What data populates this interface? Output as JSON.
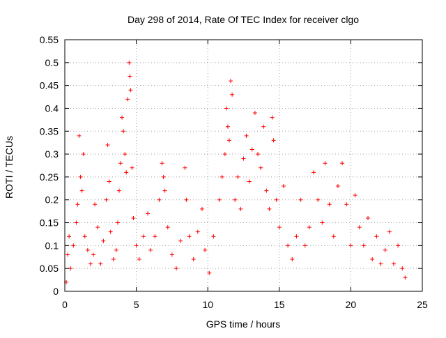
{
  "chart_data": {
    "type": "scatter",
    "title": "Day 298 of 2014, Rate Of TEC Index for receiver clgo",
    "xlabel": "GPS time / hours",
    "ylabel": "ROTI / TECUs",
    "xlim": [
      0,
      25
    ],
    "ylim": [
      0,
      0.55
    ],
    "xticks": [
      0,
      5,
      10,
      15,
      20,
      25
    ],
    "yticks": [
      0,
      0.05,
      0.1,
      0.15,
      0.2,
      0.25,
      0.3,
      0.35,
      0.4,
      0.45,
      0.5,
      0.55
    ],
    "grid": true,
    "marker": "plus",
    "color": "#ff0000",
    "series": [
      {
        "points": [
          [
            0.1,
            0.02
          ],
          [
            0.2,
            0.08
          ],
          [
            0.3,
            0.12
          ],
          [
            0.4,
            0.05
          ],
          [
            0.6,
            0.1
          ],
          [
            0.8,
            0.15
          ],
          [
            0.9,
            0.19
          ],
          [
            1.0,
            0.34
          ],
          [
            1.1,
            0.25
          ],
          [
            1.2,
            0.22
          ],
          [
            1.3,
            0.3
          ],
          [
            1.4,
            0.12
          ],
          [
            1.6,
            0.09
          ],
          [
            1.8,
            0.06
          ],
          [
            2.0,
            0.08
          ],
          [
            2.1,
            0.19
          ],
          [
            2.3,
            0.14
          ],
          [
            2.5,
            0.06
          ],
          [
            2.7,
            0.11
          ],
          [
            2.9,
            0.2
          ],
          [
            3.0,
            0.32
          ],
          [
            3.1,
            0.24
          ],
          [
            3.2,
            0.13
          ],
          [
            3.4,
            0.07
          ],
          [
            3.6,
            0.09
          ],
          [
            3.7,
            0.15
          ],
          [
            3.8,
            0.22
          ],
          [
            3.9,
            0.28
          ],
          [
            4.0,
            0.38
          ],
          [
            4.1,
            0.35
          ],
          [
            4.2,
            0.3
          ],
          [
            4.3,
            0.26
          ],
          [
            4.4,
            0.42
          ],
          [
            4.5,
            0.5
          ],
          [
            4.55,
            0.47
          ],
          [
            4.6,
            0.44
          ],
          [
            4.7,
            0.27
          ],
          [
            4.8,
            0.16
          ],
          [
            5.0,
            0.1
          ],
          [
            5.2,
            0.07
          ],
          [
            5.5,
            0.12
          ],
          [
            5.8,
            0.17
          ],
          [
            6.0,
            0.09
          ],
          [
            6.3,
            0.12
          ],
          [
            6.6,
            0.2
          ],
          [
            6.8,
            0.28
          ],
          [
            6.9,
            0.25
          ],
          [
            7.0,
            0.22
          ],
          [
            7.2,
            0.14
          ],
          [
            7.5,
            0.08
          ],
          [
            7.8,
            0.05
          ],
          [
            8.1,
            0.11
          ],
          [
            8.4,
            0.27
          ],
          [
            8.5,
            0.2
          ],
          [
            8.7,
            0.12
          ],
          [
            9.0,
            0.07
          ],
          [
            9.3,
            0.13
          ],
          [
            9.6,
            0.18
          ],
          [
            9.8,
            0.09
          ],
          [
            10.1,
            0.04
          ],
          [
            10.4,
            0.12
          ],
          [
            10.8,
            0.2
          ],
          [
            11.0,
            0.25
          ],
          [
            11.2,
            0.3
          ],
          [
            11.3,
            0.4
          ],
          [
            11.4,
            0.36
          ],
          [
            11.5,
            0.33
          ],
          [
            11.6,
            0.46
          ],
          [
            11.7,
            0.43
          ],
          [
            11.9,
            0.2
          ],
          [
            12.1,
            0.25
          ],
          [
            12.3,
            0.18
          ],
          [
            12.5,
            0.29
          ],
          [
            12.7,
            0.34
          ],
          [
            12.9,
            0.24
          ],
          [
            13.1,
            0.31
          ],
          [
            13.3,
            0.39
          ],
          [
            13.5,
            0.3
          ],
          [
            13.7,
            0.27
          ],
          [
            13.9,
            0.36
          ],
          [
            14.1,
            0.22
          ],
          [
            14.3,
            0.18
          ],
          [
            14.5,
            0.38
          ],
          [
            14.6,
            0.33
          ],
          [
            14.8,
            0.2
          ],
          [
            15.0,
            0.14
          ],
          [
            15.3,
            0.23
          ],
          [
            15.6,
            0.1
          ],
          [
            15.9,
            0.07
          ],
          [
            16.2,
            0.12
          ],
          [
            16.5,
            0.2
          ],
          [
            16.8,
            0.1
          ],
          [
            17.1,
            0.14
          ],
          [
            17.4,
            0.26
          ],
          [
            17.7,
            0.2
          ],
          [
            18.0,
            0.15
          ],
          [
            18.2,
            0.28
          ],
          [
            18.5,
            0.19
          ],
          [
            18.8,
            0.12
          ],
          [
            19.1,
            0.23
          ],
          [
            19.4,
            0.28
          ],
          [
            19.7,
            0.19
          ],
          [
            20.0,
            0.1
          ],
          [
            20.3,
            0.21
          ],
          [
            20.6,
            0.14
          ],
          [
            20.9,
            0.1
          ],
          [
            21.2,
            0.16
          ],
          [
            21.5,
            0.07
          ],
          [
            21.8,
            0.12
          ],
          [
            22.1,
            0.06
          ],
          [
            22.4,
            0.09
          ],
          [
            22.7,
            0.13
          ],
          [
            23.0,
            0.06
          ],
          [
            23.3,
            0.1
          ],
          [
            23.6,
            0.05
          ],
          [
            23.8,
            0.03
          ]
        ]
      }
    ]
  }
}
